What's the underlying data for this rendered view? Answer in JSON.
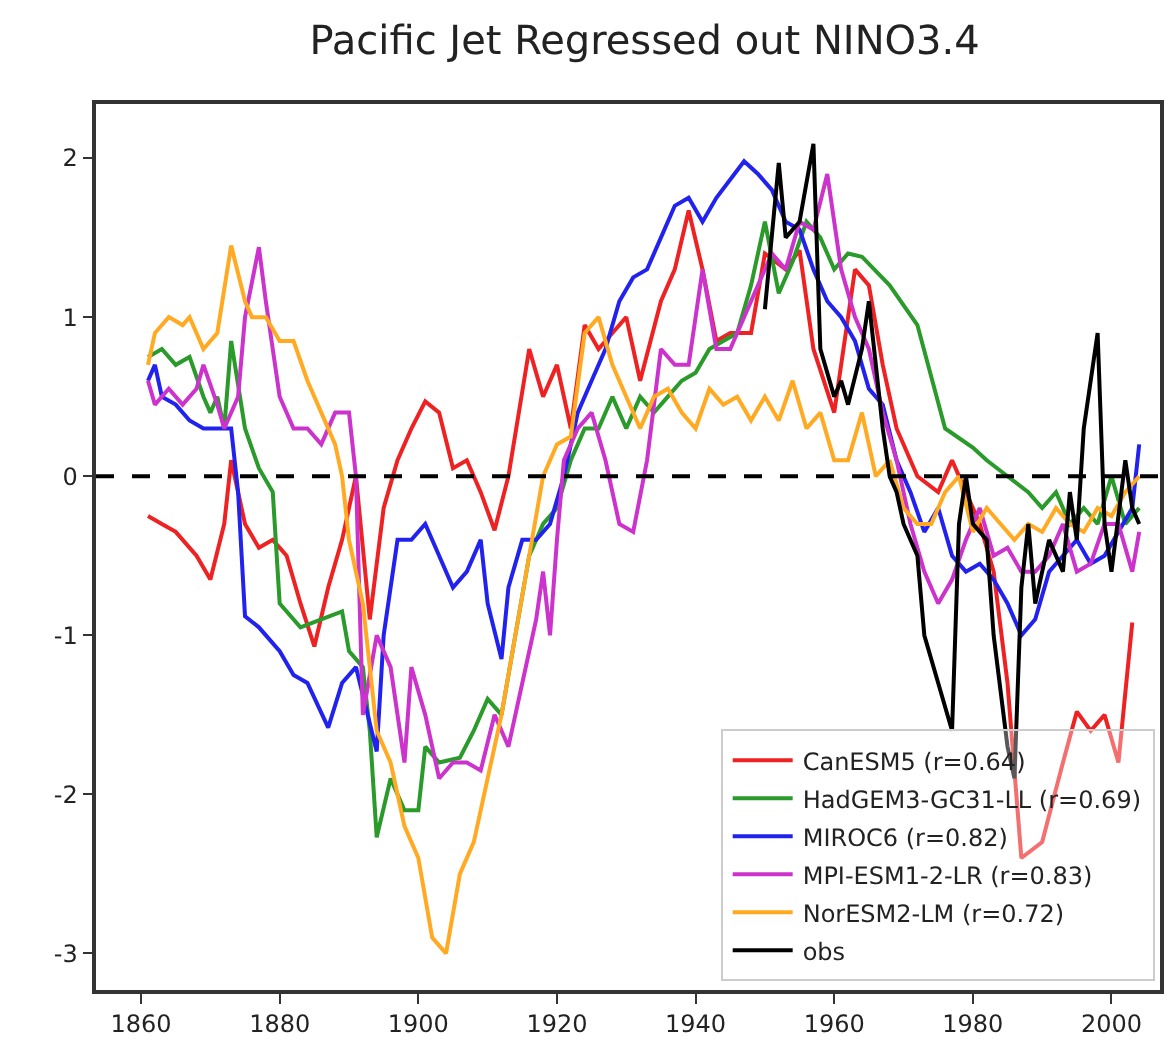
{
  "chart_data": {
    "type": "line",
    "title": "Pacific Jet Regressed out NINO3.4",
    "xlim": [
      1853.5,
      2007
    ],
    "xticks": [
      1860,
      1880,
      1900,
      1920,
      1940,
      1960,
      1980,
      2000
    ],
    "ylim": [
      -3.23,
      2.34
    ],
    "yticks": [
      -3,
      -2,
      -1,
      0,
      1,
      2
    ],
    "legend": "bottom right",
    "line_style": "solid",
    "marker": "none",
    "ref_lines": [
      {
        "axis": "y",
        "value": 0,
        "color": "#000000",
        "line_style": "dashed"
      }
    ],
    "series": [
      {
        "name": "CanESM5 (r=0.64)",
        "color": "#ee2222",
        "x": [
          1861,
          1863,
          1865,
          1868,
          1870,
          1872,
          1873,
          1875,
          1877,
          1879,
          1881,
          1883,
          1885,
          1887,
          1889,
          1891,
          1893,
          1895,
          1897,
          1899,
          1901,
          1903,
          1905,
          1907,
          1909,
          1911,
          1913,
          1916,
          1918,
          1920,
          1922,
          1924,
          1926,
          1928,
          1930,
          1932,
          1935,
          1937,
          1939,
          1941,
          1943,
          1945,
          1948,
          1950,
          1953,
          1955,
          1957,
          1960,
          1963,
          1965,
          1967,
          1969,
          1972,
          1975,
          1977,
          1979,
          1981,
          1983,
          1985,
          1987,
          1990,
          1993,
          1995,
          1997,
          1999,
          2001,
          2003
        ],
        "values": [
          -0.25,
          -0.3,
          -0.35,
          -0.5,
          -0.65,
          -0.3,
          0.1,
          -0.3,
          -0.45,
          -0.4,
          -0.5,
          -0.8,
          -1.07,
          -0.7,
          -0.4,
          0.0,
          -0.9,
          -0.2,
          0.1,
          0.3,
          0.47,
          0.4,
          0.05,
          0.1,
          -0.1,
          -0.34,
          0.0,
          0.8,
          0.5,
          0.7,
          0.3,
          0.95,
          0.8,
          0.9,
          1.0,
          0.6,
          1.1,
          1.3,
          1.67,
          1.3,
          0.85,
          0.9,
          0.9,
          1.4,
          1.3,
          1.42,
          0.8,
          0.4,
          1.3,
          1.2,
          0.7,
          0.3,
          0.0,
          -0.1,
          0.1,
          -0.1,
          -0.3,
          -0.6,
          -1.3,
          -2.4,
          -2.3,
          -1.8,
          -1.48,
          -1.6,
          -1.5,
          -1.8,
          -0.92
        ]
      },
      {
        "name": "HadGEM3-GC31-LL (r=0.69)",
        "color": "#2a9a2a",
        "x": [
          1861,
          1863,
          1865,
          1867,
          1869,
          1870,
          1871,
          1872,
          1873,
          1875,
          1877,
          1879,
          1880,
          1883,
          1886,
          1889,
          1890,
          1892,
          1893,
          1894,
          1896,
          1898,
          1900,
          1901,
          1903,
          1906,
          1908,
          1910,
          1912,
          1914,
          1916,
          1918,
          1920,
          1922,
          1924,
          1926,
          1928,
          1930,
          1932,
          1934,
          1936,
          1938,
          1940,
          1942,
          1944,
          1946,
          1948,
          1950,
          1952,
          1954,
          1956,
          1958,
          1960,
          1962,
          1964,
          1968,
          1972,
          1976,
          1980,
          1982,
          1985,
          1988,
          1990,
          1992,
          1994,
          1996,
          1998,
          2000,
          2002,
          2004
        ],
        "values": [
          0.75,
          0.8,
          0.7,
          0.75,
          0.5,
          0.4,
          0.5,
          0.3,
          0.85,
          0.3,
          0.05,
          -0.1,
          -0.8,
          -0.95,
          -0.9,
          -0.85,
          -1.1,
          -1.2,
          -1.6,
          -2.27,
          -1.9,
          -2.1,
          -2.1,
          -1.7,
          -1.8,
          -1.77,
          -1.6,
          -1.4,
          -1.5,
          -1.0,
          -0.5,
          -0.3,
          -0.2,
          0.1,
          0.3,
          0.3,
          0.5,
          0.3,
          0.5,
          0.4,
          0.5,
          0.6,
          0.65,
          0.8,
          0.85,
          0.9,
          1.2,
          1.6,
          1.15,
          1.35,
          1.6,
          1.5,
          1.3,
          1.4,
          1.38,
          1.2,
          0.95,
          0.3,
          0.18,
          0.1,
          0.0,
          -0.1,
          -0.2,
          -0.1,
          -0.3,
          -0.2,
          -0.3,
          0.0,
          -0.3,
          -0.2
        ]
      },
      {
        "name": "MIROC6 (r=0.82)",
        "color": "#2222ee",
        "x": [
          1861,
          1862,
          1863,
          1865,
          1867,
          1869,
          1871,
          1873,
          1874,
          1875,
          1877,
          1880,
          1882,
          1884,
          1887,
          1889,
          1891,
          1894,
          1895,
          1897,
          1899,
          1901,
          1903,
          1905,
          1907,
          1909,
          1910,
          1912,
          1913,
          1915,
          1917,
          1919,
          1921,
          1923,
          1925,
          1927,
          1929,
          1931,
          1933,
          1935,
          1937,
          1939,
          1941,
          1943,
          1947,
          1949,
          1951,
          1953,
          1955,
          1957,
          1959,
          1961,
          1963,
          1965,
          1967,
          1969,
          1971,
          1973,
          1975,
          1977,
          1979,
          1981,
          1983,
          1985,
          1987,
          1989,
          1991,
          1993,
          1995,
          1997,
          1999,
          2001,
          2003,
          2004
        ],
        "values": [
          0.6,
          0.7,
          0.5,
          0.45,
          0.35,
          0.3,
          0.3,
          0.3,
          -0.1,
          -0.88,
          -0.95,
          -1.1,
          -1.25,
          -1.3,
          -1.58,
          -1.3,
          -1.2,
          -1.73,
          -1.0,
          -0.4,
          -0.4,
          -0.3,
          -0.5,
          -0.7,
          -0.6,
          -0.4,
          -0.8,
          -1.15,
          -0.7,
          -0.4,
          -0.4,
          -0.3,
          0.0,
          0.4,
          0.6,
          0.8,
          1.1,
          1.25,
          1.3,
          1.5,
          1.7,
          1.75,
          1.6,
          1.75,
          1.98,
          1.9,
          1.8,
          1.6,
          1.55,
          1.3,
          1.1,
          1.0,
          0.85,
          0.55,
          0.45,
          0.1,
          -0.1,
          -0.35,
          -0.2,
          -0.5,
          -0.6,
          -0.55,
          -0.65,
          -0.8,
          -1.0,
          -0.9,
          -0.6,
          -0.5,
          -0.4,
          -0.55,
          -0.5,
          -0.35,
          -0.2,
          0.2
        ]
      },
      {
        "name": "MPI-ESM1-2-LR (r=0.83)",
        "color": "#cc33cc",
        "x": [
          1861,
          1862,
          1864,
          1866,
          1868,
          1869,
          1871,
          1872,
          1874,
          1875,
          1877,
          1878,
          1880,
          1882,
          1884,
          1886,
          1888,
          1890,
          1891,
          1892,
          1894,
          1896,
          1898,
          1899,
          1901,
          1903,
          1905,
          1907,
          1909,
          1911,
          1913,
          1915,
          1917,
          1918,
          1919,
          1920,
          1921,
          1923,
          1925,
          1927,
          1929,
          1931,
          1933,
          1935,
          1937,
          1939,
          1941,
          1943,
          1945,
          1947,
          1949,
          1951,
          1953,
          1955,
          1957,
          1959,
          1961,
          1963,
          1965,
          1967,
          1969,
          1971,
          1973,
          1975,
          1977,
          1979,
          1981,
          1983,
          1985,
          1987,
          1989,
          1991,
          1993,
          1995,
          1997,
          1999,
          2001,
          2003,
          2004
        ],
        "values": [
          0.6,
          0.45,
          0.55,
          0.45,
          0.55,
          0.7,
          0.45,
          0.3,
          0.5,
          1.0,
          1.44,
          1.1,
          0.5,
          0.3,
          0.3,
          0.2,
          0.4,
          0.4,
          0.0,
          -1.5,
          -1.0,
          -1.2,
          -1.8,
          -1.2,
          -1.5,
          -1.9,
          -1.8,
          -1.8,
          -1.85,
          -1.5,
          -1.7,
          -1.3,
          -0.9,
          -0.6,
          -1.0,
          -0.4,
          0.1,
          0.3,
          0.4,
          0.1,
          -0.3,
          -0.35,
          0.1,
          0.8,
          0.7,
          0.7,
          1.3,
          0.8,
          0.8,
          1.0,
          1.2,
          1.4,
          1.3,
          1.6,
          1.55,
          1.9,
          1.3,
          1.0,
          0.8,
          0.4,
          0.1,
          -0.3,
          -0.6,
          -0.8,
          -0.65,
          -0.4,
          -0.2,
          -0.5,
          -0.45,
          -0.6,
          -0.6,
          -0.5,
          -0.3,
          -0.6,
          -0.55,
          -0.3,
          -0.3,
          -0.6,
          -0.35
        ]
      },
      {
        "name": "NorESM2-LM (r=0.72)",
        "color": "#ffaa22",
        "x": [
          1861,
          1862,
          1864,
          1866,
          1867,
          1869,
          1871,
          1873,
          1875,
          1876,
          1878,
          1880,
          1882,
          1884,
          1886,
          1888,
          1889,
          1890,
          1892,
          1894,
          1896,
          1898,
          1900,
          1902,
          1904,
          1906,
          1908,
          1910,
          1912,
          1914,
          1916,
          1918,
          1920,
          1922,
          1924,
          1926,
          1928,
          1930,
          1932,
          1934,
          1936,
          1938,
          1940,
          1942,
          1944,
          1946,
          1948,
          1950,
          1952,
          1954,
          1956,
          1958,
          1960,
          1962,
          1964,
          1966,
          1968,
          1970,
          1972,
          1974,
          1976,
          1978,
          1980,
          1982,
          1984,
          1986,
          1988,
          1990,
          1992,
          1994,
          1996,
          1998,
          2000,
          2002,
          2004
        ],
        "values": [
          0.7,
          0.9,
          1.0,
          0.95,
          1.0,
          0.8,
          0.9,
          1.45,
          1.1,
          1.0,
          1.0,
          0.85,
          0.85,
          0.6,
          0.4,
          0.2,
          0.0,
          -0.4,
          -0.8,
          -1.6,
          -1.8,
          -2.2,
          -2.4,
          -2.9,
          -3.0,
          -2.5,
          -2.3,
          -1.9,
          -1.5,
          -1.0,
          -0.5,
          0.0,
          0.2,
          0.25,
          0.9,
          1.0,
          0.7,
          0.5,
          0.3,
          0.5,
          0.55,
          0.4,
          0.3,
          0.55,
          0.45,
          0.5,
          0.35,
          0.5,
          0.35,
          0.6,
          0.3,
          0.4,
          0.1,
          0.1,
          0.4,
          0.0,
          0.1,
          -0.2,
          -0.3,
          -0.3,
          -0.1,
          0.0,
          -0.35,
          -0.2,
          -0.3,
          -0.4,
          -0.3,
          -0.35,
          -0.2,
          -0.3,
          -0.35,
          -0.2,
          -0.25,
          -0.1,
          0.0
        ]
      },
      {
        "name": "obs",
        "color": "#000000",
        "x": [
          1950,
          1952,
          1953,
          1955,
          1957,
          1958,
          1960,
          1961,
          1962,
          1964,
          1965,
          1967,
          1968,
          1969,
          1970,
          1972,
          1973,
          1975,
          1977,
          1978,
          1979,
          1980,
          1982,
          1983,
          1985,
          1986,
          1987,
          1988,
          1989,
          1991,
          1993,
          1994,
          1995,
          1996,
          1998,
          1999,
          2000,
          2002,
          2003,
          2004
        ],
        "values": [
          1.05,
          1.97,
          1.5,
          1.6,
          2.09,
          0.8,
          0.5,
          0.6,
          0.45,
          0.8,
          1.1,
          0.3,
          0.0,
          -0.1,
          -0.3,
          -0.5,
          -1.0,
          -1.3,
          -1.6,
          -0.3,
          0.0,
          -0.3,
          -0.4,
          -1.0,
          -1.7,
          -1.9,
          -0.7,
          -0.3,
          -0.8,
          -0.4,
          -0.6,
          -0.1,
          -0.4,
          0.3,
          0.9,
          -0.3,
          -0.6,
          0.1,
          -0.2,
          -0.3
        ]
      }
    ]
  }
}
